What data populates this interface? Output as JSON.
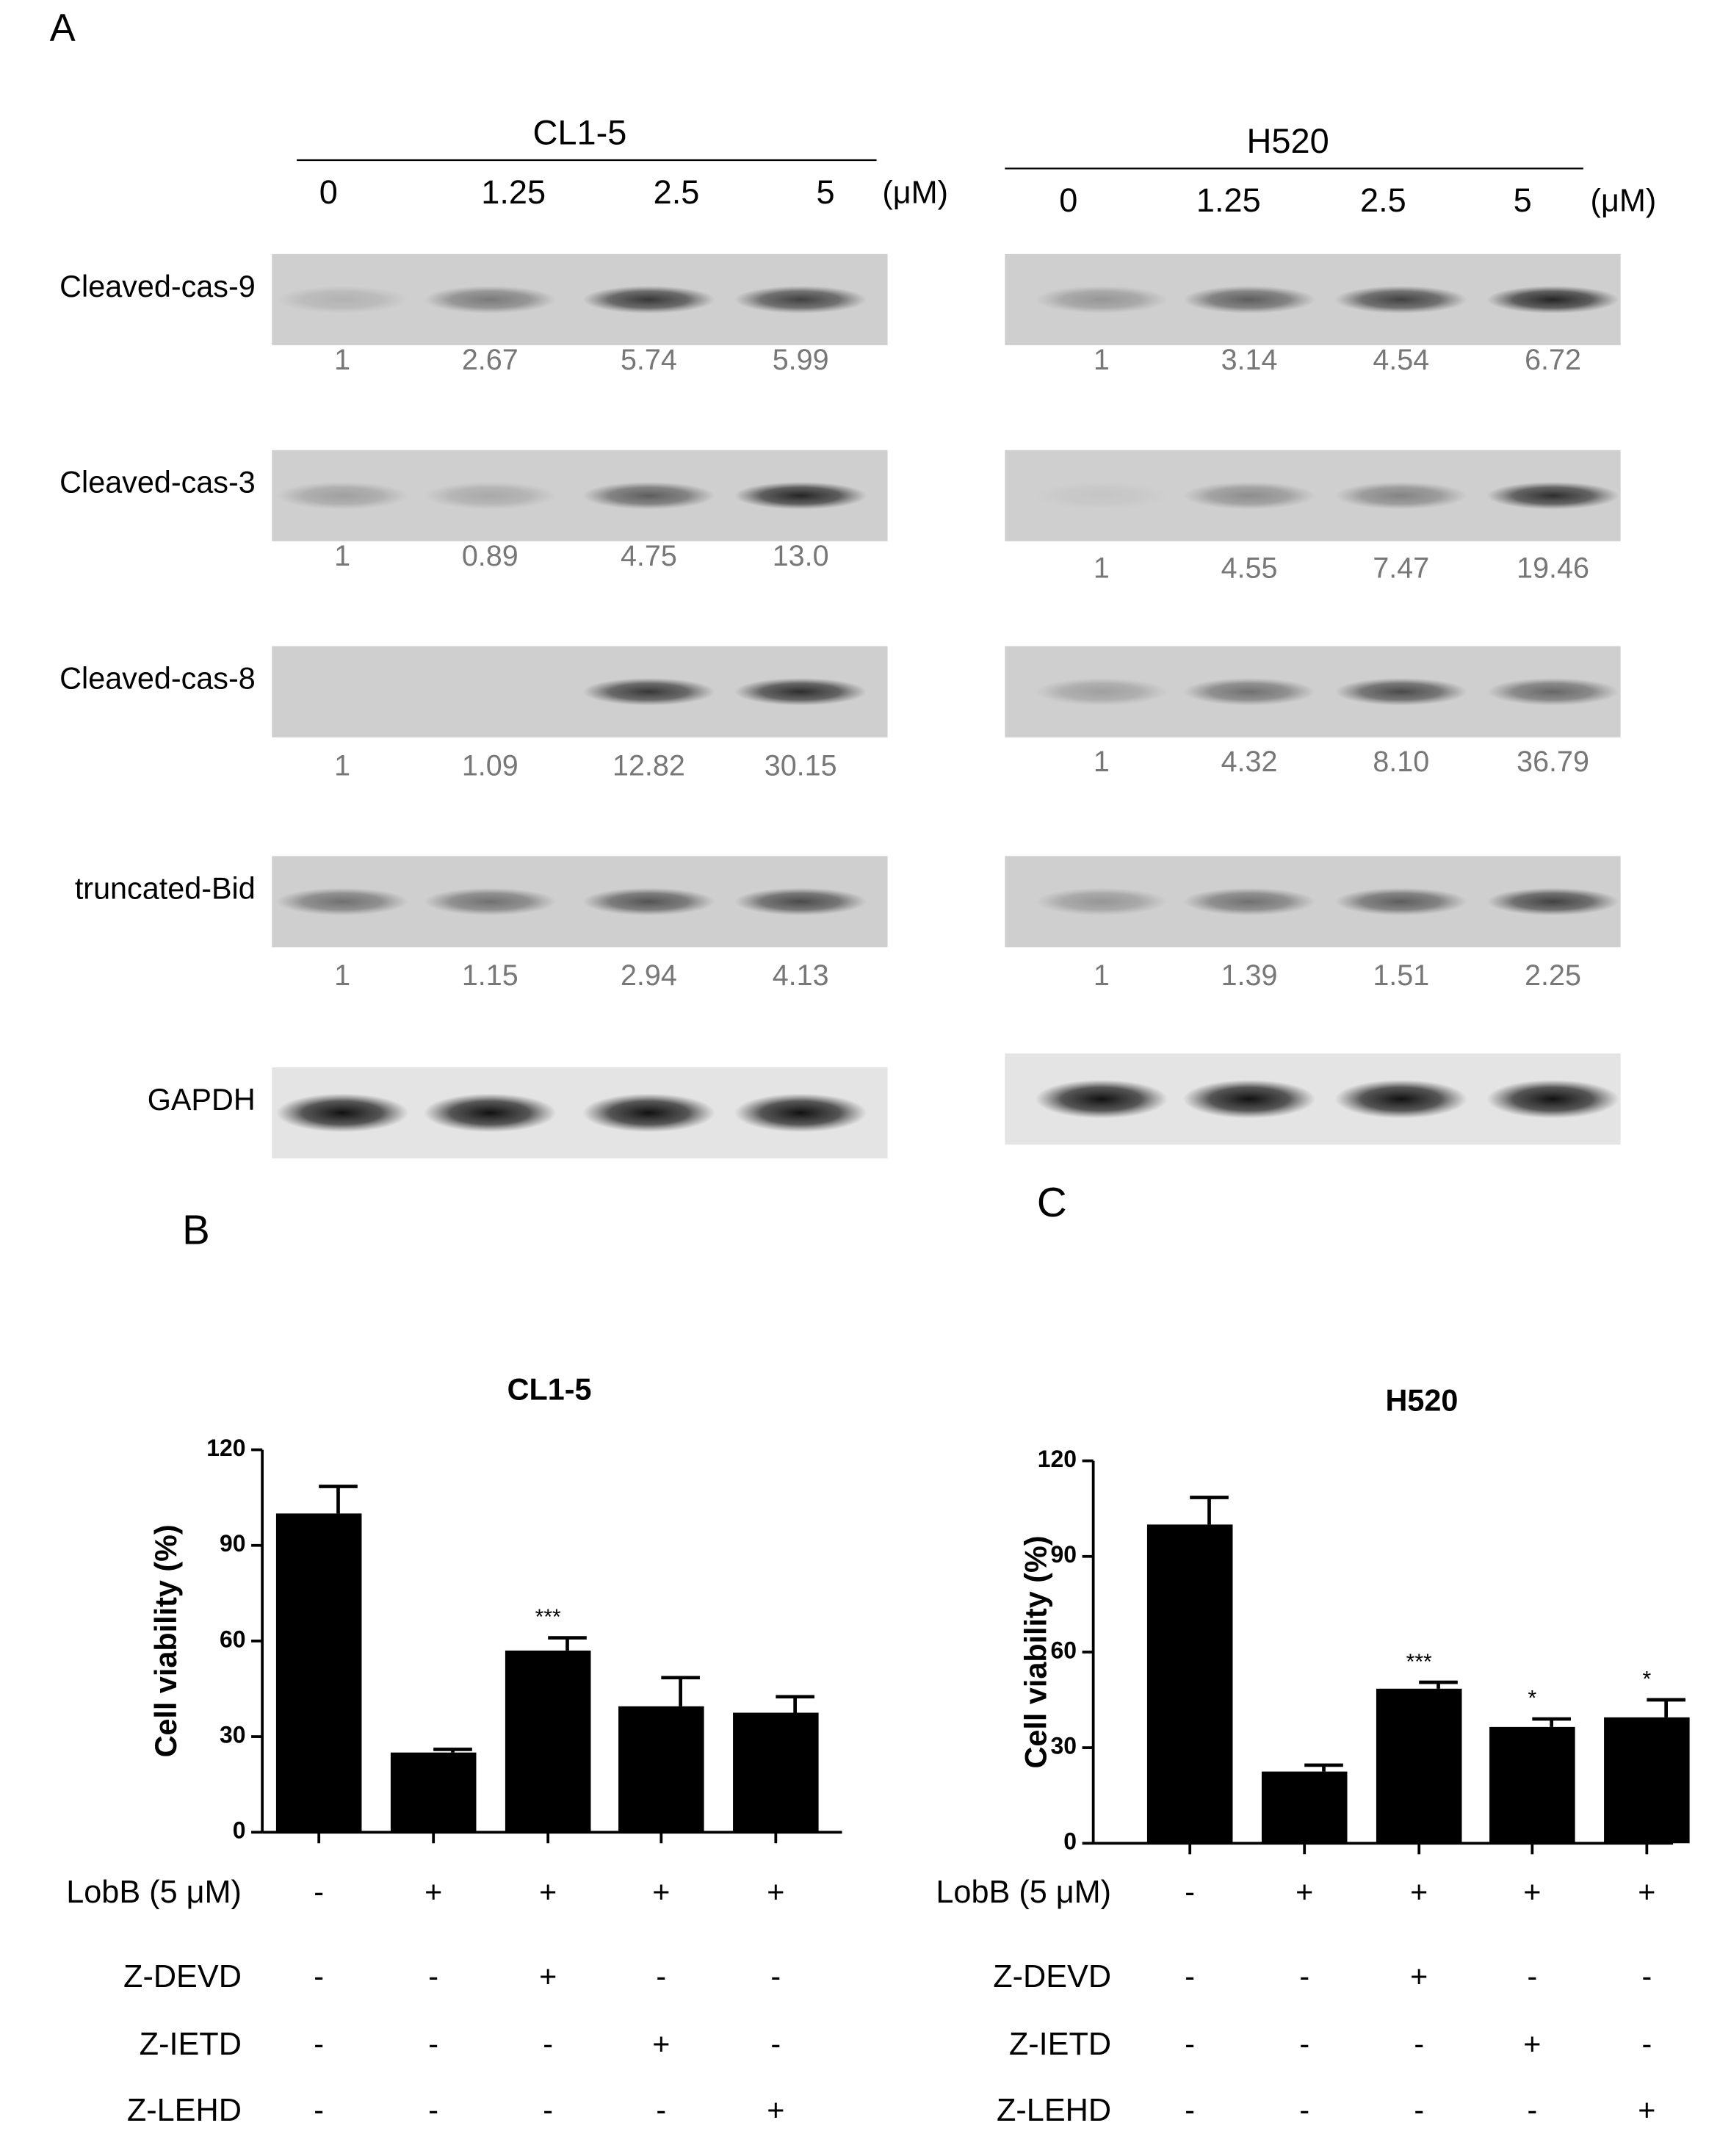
{
  "panel_a": {
    "label": "A",
    "concentration_unit": "(μM)",
    "row_labels": [
      "Cleaved-cas-9",
      "Cleaved-cas-3",
      "Cleaved-cas-8",
      "truncated-Bid",
      "GAPDH"
    ],
    "blots": [
      {
        "cell_line": "CL1-5",
        "concentrations": [
          "0",
          "1.25",
          "2.5",
          "5"
        ],
        "quantification": [
          [
            "1",
            "2.67",
            "5.74",
            "5.99"
          ],
          [
            "1",
            "0.89",
            "4.75",
            "13.0"
          ],
          [
            "1",
            "1.09",
            "12.82",
            "30.15"
          ],
          [
            "1",
            "1.15",
            "2.94",
            "4.13"
          ]
        ]
      },
      {
        "cell_line": "H520",
        "concentrations": [
          "0",
          "1.25",
          "2.5",
          "5"
        ],
        "quantification": [
          [
            "1",
            "3.14",
            "4.54",
            "6.72"
          ],
          [
            "1",
            "4.55",
            "7.47",
            "19.46"
          ],
          [
            "1",
            "4.32",
            "8.10",
            "36.79"
          ],
          [
            "1",
            "1.39",
            "1.51",
            "2.25"
          ]
        ]
      }
    ]
  },
  "chart_data": [
    {
      "type": "bar",
      "panel": "B",
      "title": "CL1-5",
      "y_label": "Cell viability (%)",
      "categories": [
        null,
        null,
        null,
        null,
        null
      ],
      "values": [
        100,
        25,
        57,
        39.5,
        37.5
      ],
      "errors": [
        8.5,
        1,
        4,
        9,
        5
      ],
      "annotations": [
        null,
        null,
        "***",
        null,
        null
      ],
      "color": "#000000",
      "ylim": [
        0,
        120
      ],
      "yticks": [
        0,
        30,
        60,
        90,
        120
      ],
      "treatments": [
        {
          "label": "LobB (5 μM)",
          "signs": [
            "-",
            "+",
            "+",
            "+",
            "+"
          ]
        },
        {
          "label": "Z-DEVD",
          "signs": [
            "-",
            "-",
            "+",
            "-",
            "-"
          ]
        },
        {
          "label": "Z-IETD",
          "signs": [
            "-",
            "-",
            "-",
            "+",
            "-"
          ]
        },
        {
          "label": "Z-LEHD",
          "signs": [
            "-",
            "-",
            "-",
            "-",
            "+"
          ]
        }
      ]
    },
    {
      "type": "bar",
      "panel": "C",
      "title": "H520",
      "y_label": "Cell viability (%)",
      "categories": [
        null,
        null,
        null,
        null,
        null
      ],
      "values": [
        100,
        22.5,
        48.5,
        36.5,
        39.5
      ],
      "errors": [
        8.5,
        2,
        2,
        2.5,
        5.5
      ],
      "annotations": [
        null,
        null,
        "***",
        "*",
        "*"
      ],
      "color": "#000000",
      "ylim": [
        0,
        120
      ],
      "yticks": [
        0,
        30,
        60,
        90,
        120
      ],
      "treatments": [
        {
          "label": "LobB (5 μM)",
          "signs": [
            "-",
            "+",
            "+",
            "+",
            "+"
          ]
        },
        {
          "label": "Z-DEVD",
          "signs": [
            "-",
            "-",
            "+",
            "-",
            "-"
          ]
        },
        {
          "label": "Z-IETD",
          "signs": [
            "-",
            "-",
            "-",
            "+",
            "-"
          ]
        },
        {
          "label": "Z-LEHD",
          "signs": [
            "-",
            "-",
            "-",
            "-",
            "+"
          ]
        }
      ]
    }
  ]
}
